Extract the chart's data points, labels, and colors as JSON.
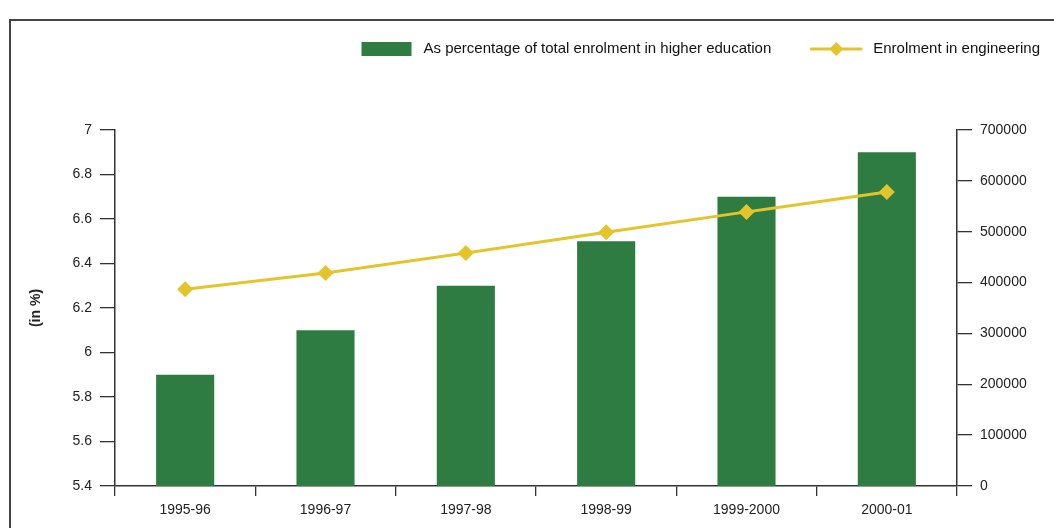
{
  "chart_data": {
    "type": "bar",
    "categories": [
      "1995-96",
      "1996-97",
      "1997-98",
      "1998-99",
      "1999-2000",
      "2000-01"
    ],
    "series": [
      {
        "name": "As percentage of total enrolment in higher education",
        "color": "#2e7c41",
        "values": [
          5.9,
          6.1,
          6.3,
          6.5,
          6.7,
          6.9
        ]
      },
      {
        "name": "Enrolment in engineering",
        "type": "line",
        "axis": "y2",
        "color": "#e3c42a",
        "values": [
          387000,
          419000,
          458000,
          499000,
          539000,
          578000
        ]
      }
    ],
    "ylabel": "(in %)",
    "ylim": [
      5.4,
      7
    ],
    "yticks": [
      5.4,
      5.6,
      5.8,
      6,
      6.2,
      6.4,
      6.6,
      6.8,
      7
    ],
    "y2lim": [
      0,
      700000
    ],
    "y2ticks": [
      0,
      100000,
      200000,
      300000,
      400000,
      500000,
      600000,
      700000
    ],
    "marker": "diamond",
    "grid": false,
    "legend": "top right"
  }
}
